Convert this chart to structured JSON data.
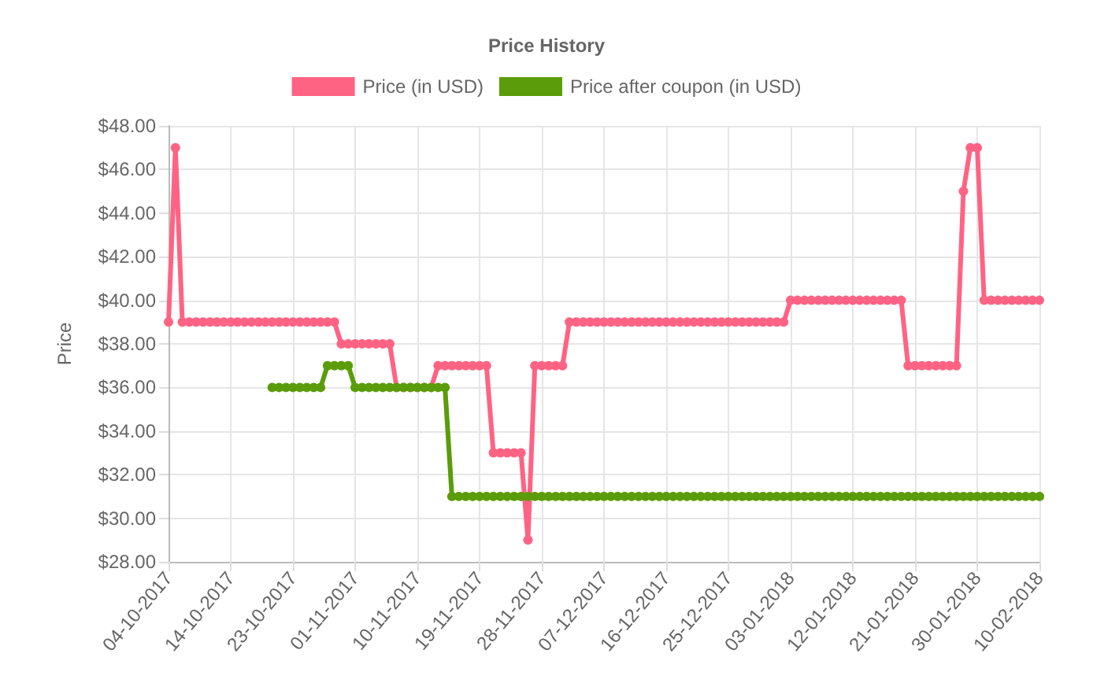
{
  "chart_data": {
    "type": "line",
    "title": "Price History",
    "ylabel": "Price",
    "categories": [
      "04-10-2017",
      null,
      null,
      null,
      null,
      null,
      null,
      null,
      null,
      "14-10-2017",
      null,
      null,
      null,
      null,
      null,
      null,
      null,
      null,
      "23-10-2017",
      null,
      null,
      null,
      null,
      null,
      null,
      null,
      null,
      "01-11-2017",
      null,
      null,
      null,
      null,
      null,
      null,
      null,
      null,
      "10-11-2017",
      null,
      null,
      null,
      null,
      null,
      null,
      null,
      null,
      "19-11-2017",
      null,
      null,
      null,
      null,
      null,
      null,
      null,
      null,
      "28-11-2017",
      null,
      null,
      null,
      null,
      null,
      null,
      null,
      null,
      "07-12-2017",
      null,
      null,
      null,
      null,
      null,
      null,
      null,
      null,
      "16-12-2017",
      null,
      null,
      null,
      null,
      null,
      null,
      null,
      null,
      "25-12-2017",
      null,
      null,
      null,
      null,
      null,
      null,
      null,
      null,
      "03-01-2018",
      null,
      null,
      null,
      null,
      null,
      null,
      null,
      null,
      "12-01-2018",
      null,
      null,
      null,
      null,
      null,
      null,
      null,
      null,
      "21-01-2018",
      null,
      null,
      null,
      null,
      null,
      null,
      null,
      null,
      "30-01-2018",
      null,
      null,
      null,
      null,
      null,
      null,
      null,
      null,
      "10-02-2018"
    ],
    "series": [
      {
        "name": "Price (in USD)",
        "color": "#ff6384",
        "values": [
          39,
          47,
          39,
          39,
          39,
          39,
          39,
          39,
          39,
          39,
          39,
          39,
          39,
          39,
          39,
          39,
          39,
          39,
          39,
          39,
          39,
          39,
          39,
          39,
          39,
          38,
          38,
          38,
          38,
          38,
          38,
          38,
          38,
          36,
          36,
          36,
          36,
          36,
          36,
          37,
          37,
          37,
          37,
          37,
          37,
          37,
          37,
          33,
          33,
          33,
          33,
          33,
          29,
          37,
          37,
          37,
          37,
          37,
          39,
          39,
          39,
          39,
          39,
          39,
          39,
          39,
          39,
          39,
          39,
          39,
          39,
          39,
          39,
          39,
          39,
          39,
          39,
          39,
          39,
          39,
          39,
          39,
          39,
          39,
          39,
          39,
          39,
          39,
          39,
          39,
          40,
          40,
          40,
          40,
          40,
          40,
          40,
          40,
          40,
          40,
          40,
          40,
          40,
          40,
          40,
          40,
          40,
          37,
          37,
          37,
          37,
          37,
          37,
          37,
          37,
          45,
          47,
          47,
          40,
          40,
          40,
          40,
          40,
          40,
          40,
          40,
          40
        ]
      },
      {
        "name": "Price after coupon (in USD)",
        "color": "#5b9c0a",
        "values": [
          null,
          null,
          null,
          null,
          null,
          null,
          null,
          null,
          null,
          null,
          null,
          null,
          null,
          null,
          null,
          36,
          36,
          36,
          36,
          36,
          36,
          36,
          36,
          37,
          37,
          37,
          37,
          36,
          36,
          36,
          36,
          36,
          36,
          36,
          36,
          36,
          36,
          36,
          36,
          36,
          36,
          31,
          31,
          31,
          31,
          31,
          31,
          31,
          31,
          31,
          31,
          31,
          31,
          31,
          31,
          31,
          31,
          31,
          31,
          31,
          31,
          31,
          31,
          31,
          31,
          31,
          31,
          31,
          31,
          31,
          31,
          31,
          31,
          31,
          31,
          31,
          31,
          31,
          31,
          31,
          31,
          31,
          31,
          31,
          31,
          31,
          31,
          31,
          31,
          31,
          31,
          31,
          31,
          31,
          31,
          31,
          31,
          31,
          31,
          31,
          31,
          31,
          31,
          31,
          31,
          31,
          31,
          31,
          31,
          31,
          31,
          31,
          31,
          31,
          31,
          31,
          31,
          31,
          31,
          31,
          31,
          31,
          31,
          31,
          31,
          31,
          31
        ]
      }
    ],
    "ylim": [
      28,
      48
    ],
    "yticks": [
      {
        "value": 28,
        "label": "$28.00"
      },
      {
        "value": 30,
        "label": "$30.00"
      },
      {
        "value": 32,
        "label": "$32.00"
      },
      {
        "value": 34,
        "label": "$34.00"
      },
      {
        "value": 36,
        "label": "$36.00"
      },
      {
        "value": 38,
        "label": "$38.00"
      },
      {
        "value": 40,
        "label": "$40.00"
      },
      {
        "value": 42,
        "label": "$42.00"
      },
      {
        "value": 44,
        "label": "$44.00"
      },
      {
        "value": 46,
        "label": "$46.00"
      },
      {
        "value": 48,
        "label": "$48.00"
      }
    ],
    "grid": true,
    "legend": "top",
    "marker": "circle",
    "line_style": "solid"
  }
}
